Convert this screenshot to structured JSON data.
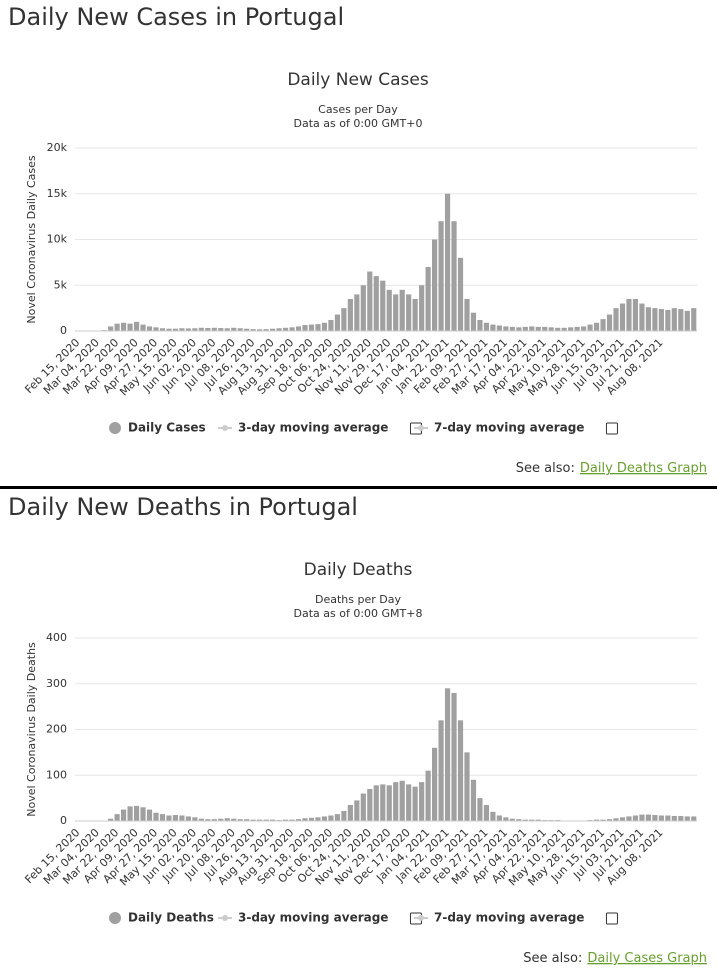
{
  "chart_data": [
    {
      "type": "bar",
      "heading": "Daily New Cases in Portugal",
      "title": "Daily New Cases",
      "subtitle": [
        "Cases per Day",
        "Data as of 0:00 GMT+0"
      ],
      "ylabel": "Novel Coronavirus Daily Cases",
      "color": "#a0a0a0",
      "grid": true,
      "ylim": [
        0,
        20000
      ],
      "yticks": [
        0,
        {
          "value": 5000,
          "label": "5k"
        },
        {
          "value": 10000,
          "label": "10k"
        },
        {
          "value": 15000,
          "label": "15k"
        },
        {
          "value": 20000,
          "label": "20k"
        }
      ],
      "categories": [
        "Feb 15, 2020",
        null,
        null,
        "Mar 04, 2020",
        null,
        null,
        "Mar 22, 2020",
        null,
        null,
        "Apr 09, 2020",
        null,
        null,
        "Apr 27, 2020",
        null,
        null,
        "May 15, 2020",
        null,
        null,
        "Jun 02, 2020",
        null,
        null,
        "Jun 20, 2020",
        null,
        null,
        "Jul 08, 2020",
        null,
        null,
        "Jul 26, 2020",
        null,
        null,
        "Aug 13, 2020",
        null,
        null,
        "Aug 31, 2020",
        null,
        null,
        "Sep 18, 2020",
        null,
        null,
        "Oct 06, 2020",
        null,
        null,
        "Oct 24, 2020",
        null,
        null,
        "Nov 11, 2020",
        null,
        null,
        "Nov 29, 2020",
        null,
        null,
        "Dec 17, 2020",
        null,
        null,
        "Jan 04, 2021",
        null,
        null,
        "Jan 22, 2021",
        null,
        null,
        "Feb 09, 2021",
        null,
        null,
        "Feb 27, 2021",
        null,
        null,
        "Mar 17, 2021",
        null,
        null,
        "Apr 04, 2021",
        null,
        null,
        "Apr 22, 2021",
        null,
        null,
        "May 10, 2021",
        null,
        null,
        "May 28, 2021",
        null,
        null,
        "Jun 15, 2021",
        null,
        null,
        "Jul 03, 2021",
        null,
        null,
        "Jul 21, 2021",
        null,
        null,
        "Aug 08, 2021",
        null,
        null,
        null,
        null,
        null
      ],
      "series": [
        {
          "name": "Daily Cases",
          "color": "#a0a0a0",
          "values": [
            0,
            0,
            0,
            0,
            100,
            500,
            800,
            900,
            800,
            1000,
            700,
            500,
            400,
            300,
            250,
            250,
            300,
            280,
            300,
            350,
            330,
            350,
            320,
            300,
            350,
            300,
            250,
            200,
            180,
            200,
            250,
            300,
            350,
            400,
            500,
            650,
            700,
            750,
            900,
            1200,
            1800,
            2500,
            3500,
            4000,
            5000,
            6500,
            6000,
            5500,
            4500,
            4000,
            4500,
            4000,
            3500,
            5000,
            7000,
            10000,
            12000,
            15000,
            12000,
            8000,
            3500,
            2000,
            1200,
            900,
            700,
            600,
            500,
            450,
            400,
            450,
            500,
            450,
            450,
            400,
            350,
            350,
            400,
            450,
            500,
            700,
            900,
            1300,
            1800,
            2500,
            3000,
            3500,
            3500,
            3000,
            2600,
            2500,
            2400,
            2300,
            2500,
            2400,
            2200,
            2500
          ]
        }
      ],
      "moving_averages": [
        "3-day moving average",
        "7-day moving average"
      ],
      "see_also": "See also:",
      "see_also_link": "Daily Deaths Graph"
    },
    {
      "type": "bar",
      "heading": "Daily New Deaths in Portugal",
      "title": "Daily Deaths",
      "subtitle": [
        "Deaths per Day",
        "Data as of 0:00 GMT+8"
      ],
      "ylabel": "Novel Coronavirus Daily Deaths",
      "color": "#a0a0a0",
      "grid": true,
      "ylim": [
        0,
        400
      ],
      "yticks": [
        0,
        100,
        200,
        300,
        400
      ],
      "categories": [
        "Feb 15, 2020",
        null,
        null,
        "Mar 04, 2020",
        null,
        null,
        "Mar 22, 2020",
        null,
        null,
        "Apr 09, 2020",
        null,
        null,
        "Apr 27, 2020",
        null,
        null,
        "May 15, 2020",
        null,
        null,
        "Jun 02, 2020",
        null,
        null,
        "Jun 20, 2020",
        null,
        null,
        "Jul 08, 2020",
        null,
        null,
        "Jul 26, 2020",
        null,
        null,
        "Aug 13, 2020",
        null,
        null,
        "Aug 31, 2020",
        null,
        null,
        "Sep 18, 2020",
        null,
        null,
        "Oct 06, 2020",
        null,
        null,
        "Oct 24, 2020",
        null,
        null,
        "Nov 11, 2020",
        null,
        null,
        "Nov 29, 2020",
        null,
        null,
        "Dec 17, 2020",
        null,
        null,
        "Jan 04, 2021",
        null,
        null,
        "Jan 22, 2021",
        null,
        null,
        "Feb 09, 2021",
        null,
        null,
        "Feb 27, 2021",
        null,
        null,
        "Mar 17, 2021",
        null,
        null,
        "Apr 04, 2021",
        null,
        null,
        "Apr 22, 2021",
        null,
        null,
        "May 10, 2021",
        null,
        null,
        "May 28, 2021",
        null,
        null,
        "Jun 15, 2021",
        null,
        null,
        "Jul 03, 2021",
        null,
        null,
        "Jul 21, 2021",
        null,
        null,
        "Aug 08, 2021",
        null,
        null,
        null,
        null,
        null
      ],
      "series": [
        {
          "name": "Daily Deaths",
          "color": "#a0a0a0",
          "values": [
            0,
            0,
            0,
            0,
            0,
            5,
            15,
            25,
            32,
            33,
            30,
            25,
            18,
            15,
            12,
            13,
            12,
            10,
            8,
            5,
            4,
            4,
            5,
            6,
            5,
            4,
            4,
            3,
            3,
            3,
            3,
            2,
            3,
            3,
            4,
            6,
            7,
            8,
            10,
            12,
            15,
            22,
            35,
            45,
            60,
            70,
            78,
            80,
            78,
            85,
            88,
            80,
            75,
            85,
            110,
            160,
            220,
            290,
            280,
            220,
            150,
            90,
            50,
            35,
            20,
            12,
            8,
            5,
            4,
            3,
            3,
            3,
            2,
            2,
            2,
            1,
            1,
            1,
            1,
            2,
            3,
            3,
            4,
            6,
            8,
            10,
            12,
            14,
            14,
            13,
            12,
            12,
            11,
            11,
            10,
            10
          ]
        }
      ],
      "moving_averages": [
        "3-day moving average",
        "7-day moving average"
      ],
      "see_also": "See also:",
      "see_also_link": "Daily Cases Graph"
    }
  ]
}
